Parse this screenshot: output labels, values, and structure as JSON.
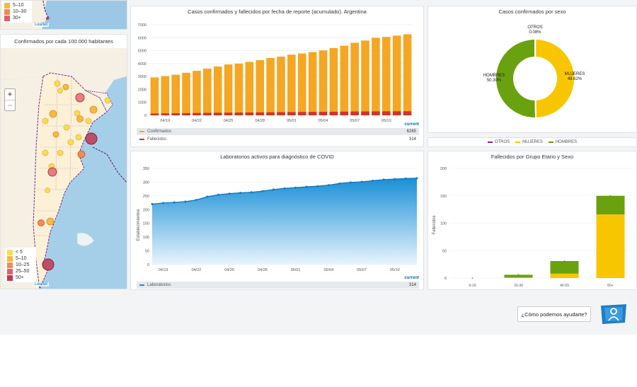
{
  "top_map_legend": [
    "5–10",
    "10–30",
    "30+"
  ],
  "bottom_map": {
    "title": "Confirmados por cada 100.000 habitantes",
    "zoom_in": "+",
    "zoom_out": "−",
    "legend": [
      {
        "label": "< 5",
        "color": "#f7dc58"
      },
      {
        "label": "5–10",
        "color": "#f5b942"
      },
      {
        "label": "10–25",
        "color": "#f08b54"
      },
      {
        "label": "25–50",
        "color": "#e0606a"
      },
      {
        "label": "50+",
        "color": "#c0394f"
      }
    ]
  },
  "leaflet_label": "Leaflet",
  "charts": {
    "cumulative": {
      "title": "Casos confirmados y fallecidos por fecha de reporte (acumulado). Argentina",
      "summary_header": "current",
      "rows": [
        {
          "label": "Confirmados",
          "value": "6265",
          "color": "#f5a623"
        },
        {
          "label": "Fallecidos",
          "value": "314",
          "color": "#d0342c"
        }
      ]
    },
    "sex": {
      "title": "Casos confirmados por sexo",
      "otros_label": "OTROS",
      "otros_pct": "0.08%",
      "hombres_label": "HOMBRES",
      "hombres_pct": "50.30%",
      "mujeres_label": "MUJERES",
      "mujeres_pct": "49.62%",
      "legend": [
        {
          "label": "OTROS",
          "color": "#7b1fa2"
        },
        {
          "label": "MUJERES",
          "color": "#f7c600"
        },
        {
          "label": "HOMBRES",
          "color": "#6aa10f"
        }
      ]
    },
    "labs": {
      "title": "Laboratorios activos para diagnóstico de COVID",
      "ylabel": "Establecimientos",
      "summary_header": "current",
      "row_label": "Laboratorios",
      "row_value": "314"
    },
    "age": {
      "title": "Fallecidos por Grupo Etario y Sexo",
      "ylabel": "Fallecidos"
    }
  },
  "chart_data": [
    {
      "type": "bar",
      "title": "Casos confirmados y fallecidos por fecha de reporte (acumulado). Argentina",
      "ylim": [
        0,
        7000
      ],
      "yticks": [
        0,
        1000,
        2000,
        3000,
        4000,
        5000,
        6000,
        7000
      ],
      "x_tick_labels": [
        "04/19",
        "04/22",
        "04/25",
        "04/28",
        "05/01",
        "05/04",
        "05/07",
        "05/10"
      ],
      "series": [
        {
          "name": "Confirmados",
          "values": [
            2930,
            3030,
            3140,
            3290,
            3440,
            3610,
            3770,
            3930,
            4000,
            4130,
            4270,
            4430,
            4540,
            4690,
            4780,
            4890,
            5020,
            5200,
            5380,
            5610,
            5780,
            5990,
            6060,
            6160,
            6265
          ]
        },
        {
          "name": "Fallecidos",
          "values": [
            140,
            150,
            160,
            170,
            180,
            190,
            200,
            210,
            215,
            220,
            230,
            235,
            245,
            250,
            260,
            265,
            270,
            275,
            285,
            295,
            300,
            305,
            310,
            312,
            314
          ]
        }
      ]
    },
    {
      "type": "pie",
      "title": "Casos confirmados por sexo",
      "categories": [
        "OTROS",
        "MUJERES",
        "HOMBRES"
      ],
      "values": [
        0.08,
        49.62,
        50.3
      ]
    },
    {
      "type": "area",
      "title": "Laboratorios activos para diagnóstico de COVID",
      "ylabel": "Establecimientos",
      "ylim": [
        0,
        350
      ],
      "yticks": [
        0,
        50,
        100,
        150,
        200,
        250,
        300,
        350
      ],
      "x_tick_labels": [
        "04/19",
        "04/22",
        "04/25",
        "04/28",
        "05/01",
        "05/04",
        "05/07",
        "05/10"
      ],
      "series": [
        {
          "name": "Laboratorios",
          "values": [
            220,
            224,
            226,
            229,
            235,
            247,
            254,
            258,
            261,
            263,
            267,
            273,
            277,
            280,
            283,
            285,
            289,
            295,
            299,
            301,
            305,
            309,
            311,
            313,
            314
          ]
        }
      ]
    },
    {
      "type": "bar",
      "title": "Fallecidos por Grupo Etario y Sexo",
      "ylabel": "Fallecidos",
      "ylim": [
        0,
        200
      ],
      "yticks": [
        0,
        50,
        100,
        150,
        200
      ],
      "categories": [
        "0-19",
        "20-39",
        "40-59",
        "60+"
      ],
      "series": [
        {
          "name": "MUJERES",
          "values": [
            0,
            1,
            8,
            116
          ]
        },
        {
          "name": "HOMBRES",
          "values": [
            0,
            5,
            23,
            34
          ]
        }
      ]
    }
  ]
}
